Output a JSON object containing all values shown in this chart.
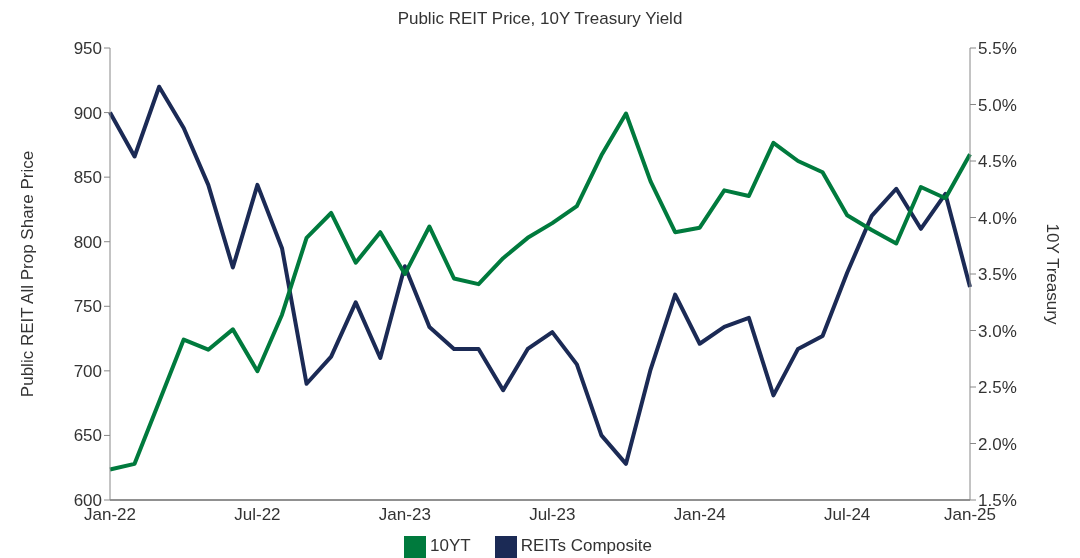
{
  "chart_data": {
    "type": "line",
    "title": "Public REIT Price, 10Y Treasury Yield",
    "ylabel": "Public REIT All Prop Share Price",
    "y2label": "10Y Treasury",
    "categories": [
      "Jan-22",
      null,
      null,
      null,
      null,
      null,
      "Jul-22",
      null,
      null,
      null,
      null,
      null,
      "Jan-23",
      null,
      null,
      null,
      null,
      null,
      "Jul-23",
      null,
      null,
      null,
      null,
      null,
      "Jan-24",
      null,
      null,
      null,
      null,
      null,
      "Jul-24",
      null,
      null,
      null,
      null,
      "Jan-25"
    ],
    "series": [
      {
        "name": "REITs Composite",
        "color": "#1b2a55",
        "values": [
          900,
          866,
          920,
          888,
          844,
          780,
          844,
          795,
          690,
          711,
          753,
          710,
          781,
          734,
          717,
          717,
          685,
          717,
          730,
          705,
          650,
          628,
          701,
          759,
          721,
          734,
          741,
          681,
          717,
          727,
          776,
          820,
          841,
          810,
          837,
          765
        ]
      },
      {
        "name": "10YT",
        "color": "#007a3d",
        "axis": "y2",
        "values": [
          1.77,
          1.82,
          2.37,
          2.92,
          2.83,
          3.01,
          2.64,
          3.14,
          3.82,
          4.04,
          3.6,
          3.87,
          3.5,
          3.92,
          3.46,
          3.41,
          3.64,
          3.82,
          3.95,
          4.1,
          4.55,
          4.92,
          4.32,
          3.87,
          3.91,
          4.24,
          4.19,
          4.66,
          4.5,
          4.4,
          4.02,
          3.89,
          3.77,
          4.27,
          4.17,
          4.56
        ]
      }
    ],
    "ylim": [
      600,
      950
    ],
    "yticks": [
      600,
      650,
      700,
      750,
      800,
      850,
      900,
      950
    ],
    "y2lim": [
      1.5,
      5.5
    ],
    "y2ticks": [
      {
        "value": 1.5,
        "label": "1.5%"
      },
      {
        "value": 2,
        "label": "2.0%"
      },
      {
        "value": 2.5,
        "label": "2.5%"
      },
      {
        "value": 3,
        "label": "3.0%"
      },
      {
        "value": 3.5,
        "label": "3.5%"
      },
      {
        "value": 4,
        "label": "4.0%"
      },
      {
        "value": 4.5,
        "label": "4.5%"
      },
      {
        "value": 5,
        "label": "5.0%"
      },
      {
        "value": 5.5,
        "label": "5.5%"
      }
    ],
    "grid": false,
    "legend": "bottom",
    "marker": "none",
    "line_style": "solid"
  }
}
